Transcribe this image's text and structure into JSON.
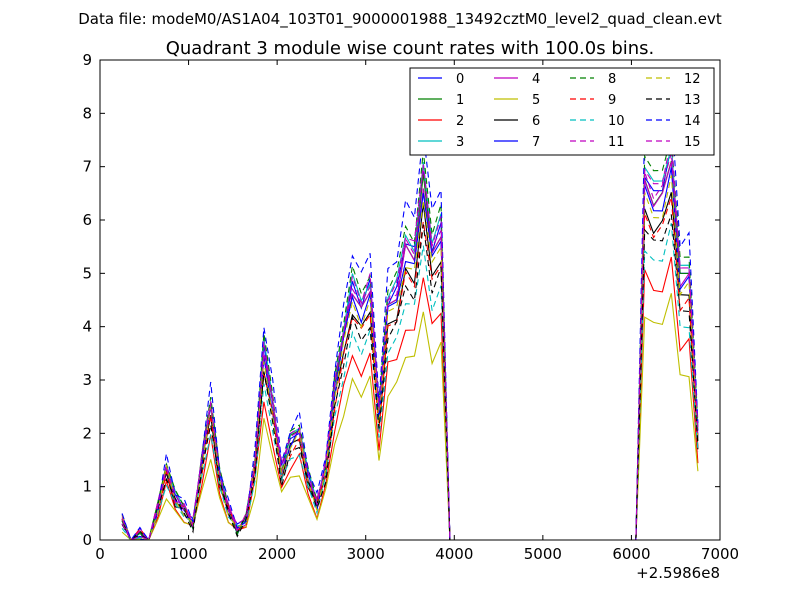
{
  "figure": {
    "suptitle": "Data file: modeM0/AS1A04_103T01_9000001988_13492cztM0_level2_quad_clean.evt"
  },
  "chart_data": {
    "type": "line",
    "title": "Quadrant 3 module wise count rates with 100.0s bins.",
    "xlabel": "",
    "ylabel": "",
    "x_offset_label": "+2.5986e8",
    "xlim": [
      0,
      7000
    ],
    "ylim": [
      0,
      9
    ],
    "xticks": [
      0,
      1000,
      2000,
      3000,
      4000,
      5000,
      6000,
      7000
    ],
    "yticks": [
      0,
      1,
      2,
      3,
      4,
      5,
      6,
      7,
      8,
      9
    ],
    "x": [
      250,
      350,
      450,
      550,
      650,
      750,
      850,
      950,
      1050,
      1150,
      1250,
      1350,
      1450,
      1550,
      1650,
      1750,
      1850,
      1950,
      2050,
      2150,
      2250,
      2350,
      2450,
      2550,
      2650,
      2750,
      2850,
      2950,
      3050,
      3150,
      3250,
      3350,
      3450,
      3550,
      3650,
      3750,
      3850,
      3950,
      4050,
      6050,
      6150,
      6250,
      6350,
      6450,
      6550,
      6650,
      6750
    ],
    "base_profile": [
      0.4,
      0.0,
      0.12,
      0.0,
      0.6,
      1.4,
      0.8,
      0.6,
      0.3,
      1.5,
      2.6,
      1.2,
      0.6,
      0.2,
      0.4,
      1.5,
      3.6,
      2.6,
      1.3,
      1.9,
      2.1,
      1.2,
      0.7,
      1.4,
      2.9,
      3.9,
      4.8,
      4.4,
      4.8,
      2.4,
      4.5,
      4.7,
      5.6,
      5.4,
      6.9,
      5.5,
      5.9,
      0.0,
      0.0,
      0.0,
      6.9,
      6.5,
      6.6,
      7.3,
      5.0,
      5.1,
      2.0
    ],
    "series": [
      {
        "name": "0",
        "color": "#0000ff",
        "style": "solid",
        "scale": 1.0
      },
      {
        "name": "1",
        "color": "#008000",
        "style": "solid",
        "scale": 0.98
      },
      {
        "name": "2",
        "color": "#ff0000",
        "style": "solid",
        "scale": 0.72
      },
      {
        "name": "3",
        "color": "#00bfbf",
        "style": "solid",
        "scale": 1.02
      },
      {
        "name": "4",
        "color": "#bf00bf",
        "style": "solid",
        "scale": 0.97
      },
      {
        "name": "5",
        "color": "#bfbf00",
        "style": "solid",
        "scale": 0.62
      },
      {
        "name": "6",
        "color": "#000000",
        "style": "solid",
        "scale": 0.9
      },
      {
        "name": "7",
        "color": "#0000ff",
        "style": "solid",
        "scale": 0.95
      },
      {
        "name": "8",
        "color": "#008000",
        "style": "dashed",
        "scale": 1.05
      },
      {
        "name": "9",
        "color": "#ff0000",
        "style": "dashed",
        "scale": 0.88
      },
      {
        "name": "10",
        "color": "#00bfbf",
        "style": "dashed",
        "scale": 0.8
      },
      {
        "name": "11",
        "color": "#bf00bf",
        "style": "dashed",
        "scale": 1.0
      },
      {
        "name": "12",
        "color": "#bfbf00",
        "style": "dashed",
        "scale": 0.93
      },
      {
        "name": "13",
        "color": "#000000",
        "style": "dashed",
        "scale": 0.85
      },
      {
        "name": "14",
        "color": "#0000ff",
        "style": "dashed",
        "scale": 1.12
      },
      {
        "name": "15",
        "color": "#bf00bf",
        "style": "dashed",
        "scale": 1.02
      }
    ],
    "legend": {
      "placement": "top-right",
      "columns": 4
    },
    "grid": false
  }
}
